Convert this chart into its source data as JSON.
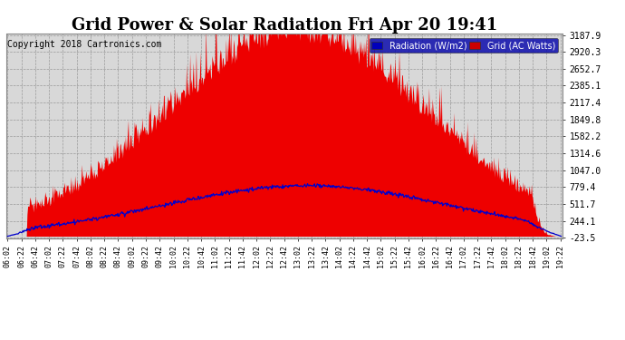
{
  "title": "Grid Power & Solar Radiation Fri Apr 20 19:41",
  "copyright": "Copyright 2018 Cartronics.com",
  "legend_radiation": "Radiation (W/m2)",
  "legend_grid": "Grid (AC Watts)",
  "yticks": [
    3187.9,
    2920.3,
    2652.7,
    2385.1,
    2117.4,
    1849.8,
    1582.2,
    1314.6,
    1047.0,
    779.4,
    511.7,
    244.1,
    -23.5
  ],
  "ymin": -23.5,
  "ymax": 3187.9,
  "bg_color": "#ffffff",
  "plot_bg_color": "#d8d8d8",
  "grid_color": "#aaaaaa",
  "red_fill_color": "#ee0000",
  "blue_line_color": "#0000cc",
  "title_fontsize": 13,
  "copyright_fontsize": 7,
  "x_start_min": 362,
  "x_end_min": 1163,
  "n_points": 800,
  "noon_min": 780,
  "grid_sigma": 185,
  "grid_peak": 3050,
  "rad_peak": 800,
  "rad_sigma": 210,
  "rad_noon": 795
}
